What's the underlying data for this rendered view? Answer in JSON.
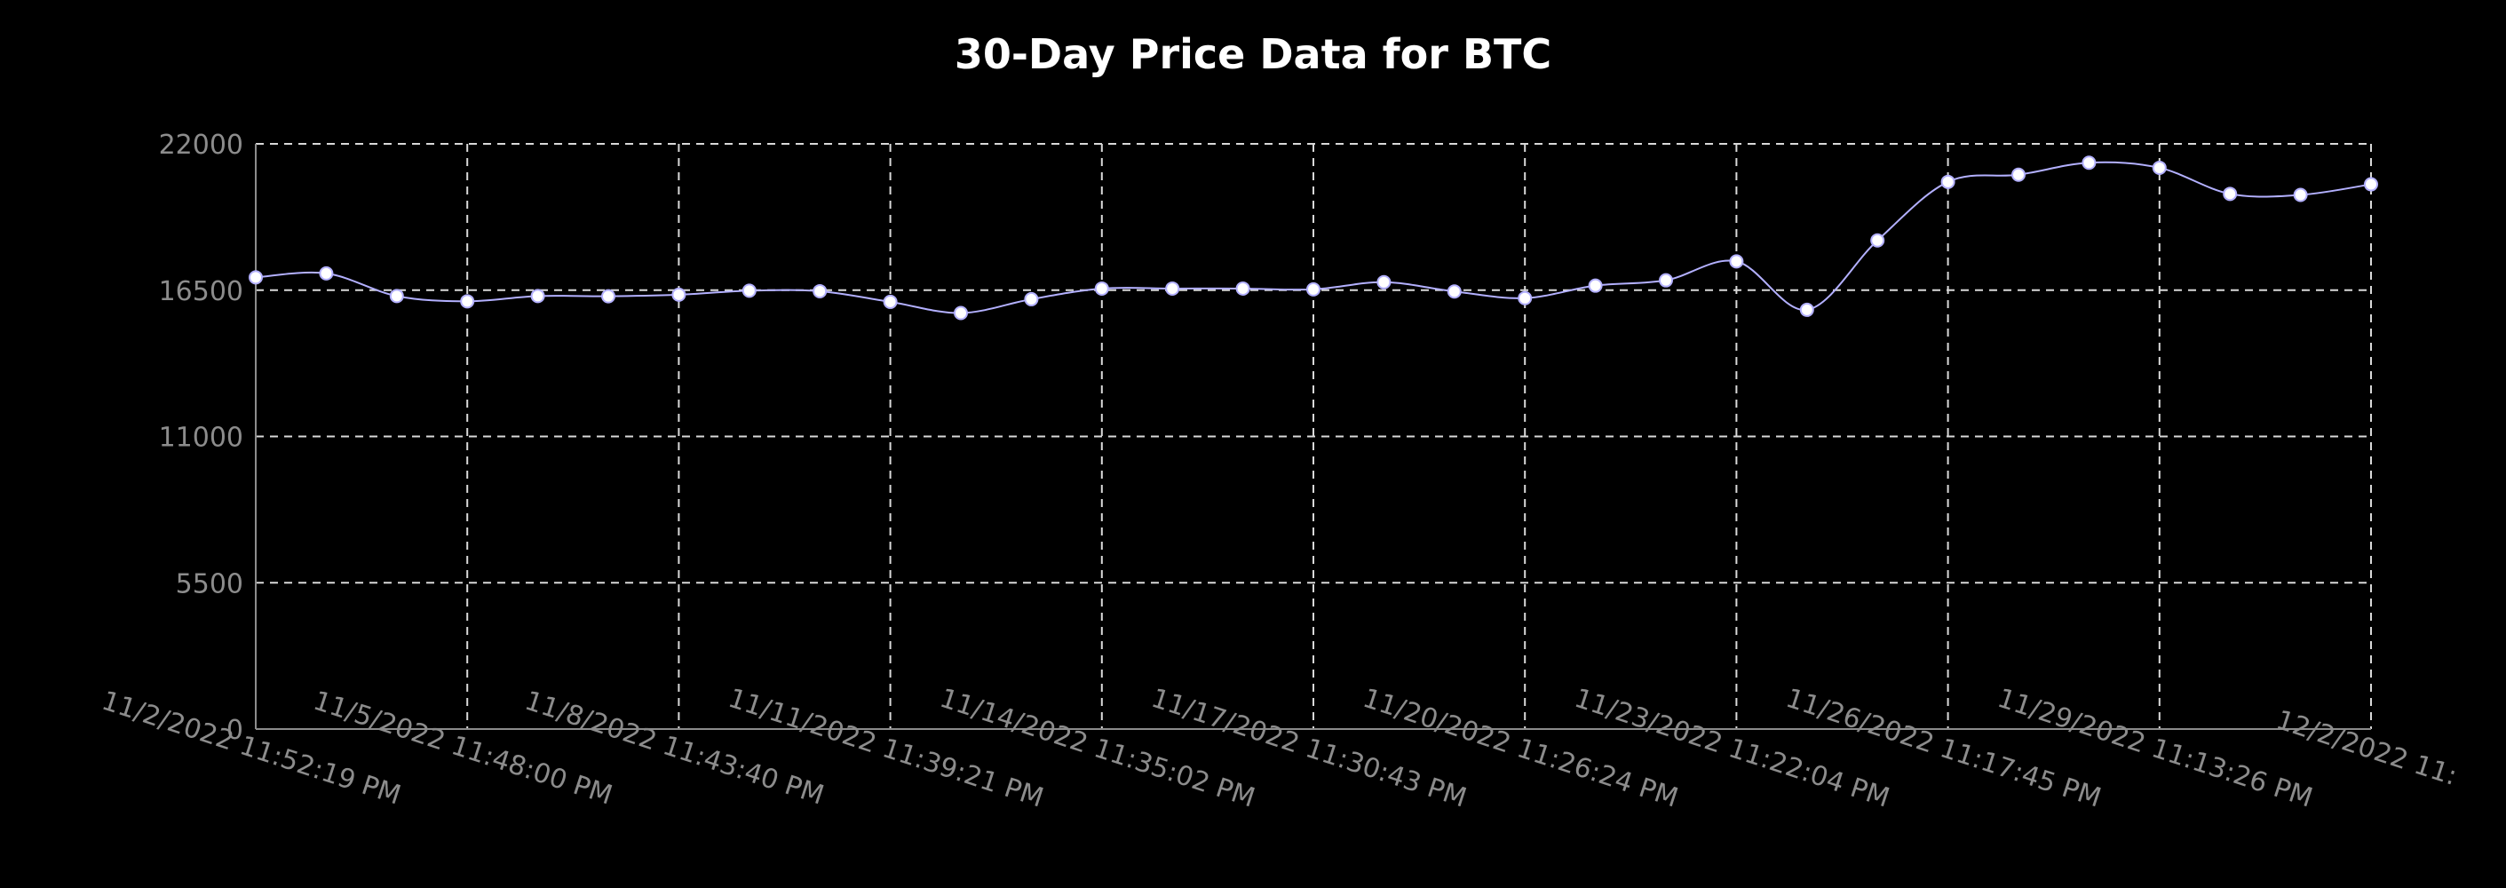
{
  "chart_data": {
    "type": "line",
    "title": "30-Day Price Data for BTC",
    "xlabel": "",
    "ylabel": "",
    "ylim": [
      0,
      22000
    ],
    "yticks": [
      "0",
      "5500",
      "11000",
      "16500",
      "22000"
    ],
    "xtick_labels": [
      "11/2/2022 11:52:19 PM",
      "11/5/2022 11:48:00 PM",
      "11/8/2022 11:43:40 PM",
      "11/11/2022 11:39:21 PM",
      "11/14/2022 11:35:02 PM",
      "11/17/2022 11:30:43 PM",
      "11/20/2022 11:26:24 PM",
      "11/23/2022 11:22:04 PM",
      "11/26/2022 11:17:45 PM",
      "11/29/2022 11:13:26 PM",
      "12/2/2022 11:"
    ],
    "grid": true,
    "legend": "none",
    "colors": {
      "line": "#b3b0ff",
      "marker": "#ffffff",
      "grid": "#d9d9d9",
      "axis": "#8c8c8c",
      "text": "#8c8c8c",
      "background": "#000000"
    },
    "series": [
      {
        "values": [
          16980,
          17130,
          16280,
          16080,
          16280,
          16270,
          16330,
          16480,
          16460,
          16060,
          15640,
          16160,
          16560,
          16560,
          16560,
          16530,
          16800,
          16450,
          16200,
          16670,
          16870,
          17580,
          15760,
          18370,
          20570,
          20840,
          21290,
          21100,
          20120,
          20080,
          20480
        ]
      }
    ]
  }
}
